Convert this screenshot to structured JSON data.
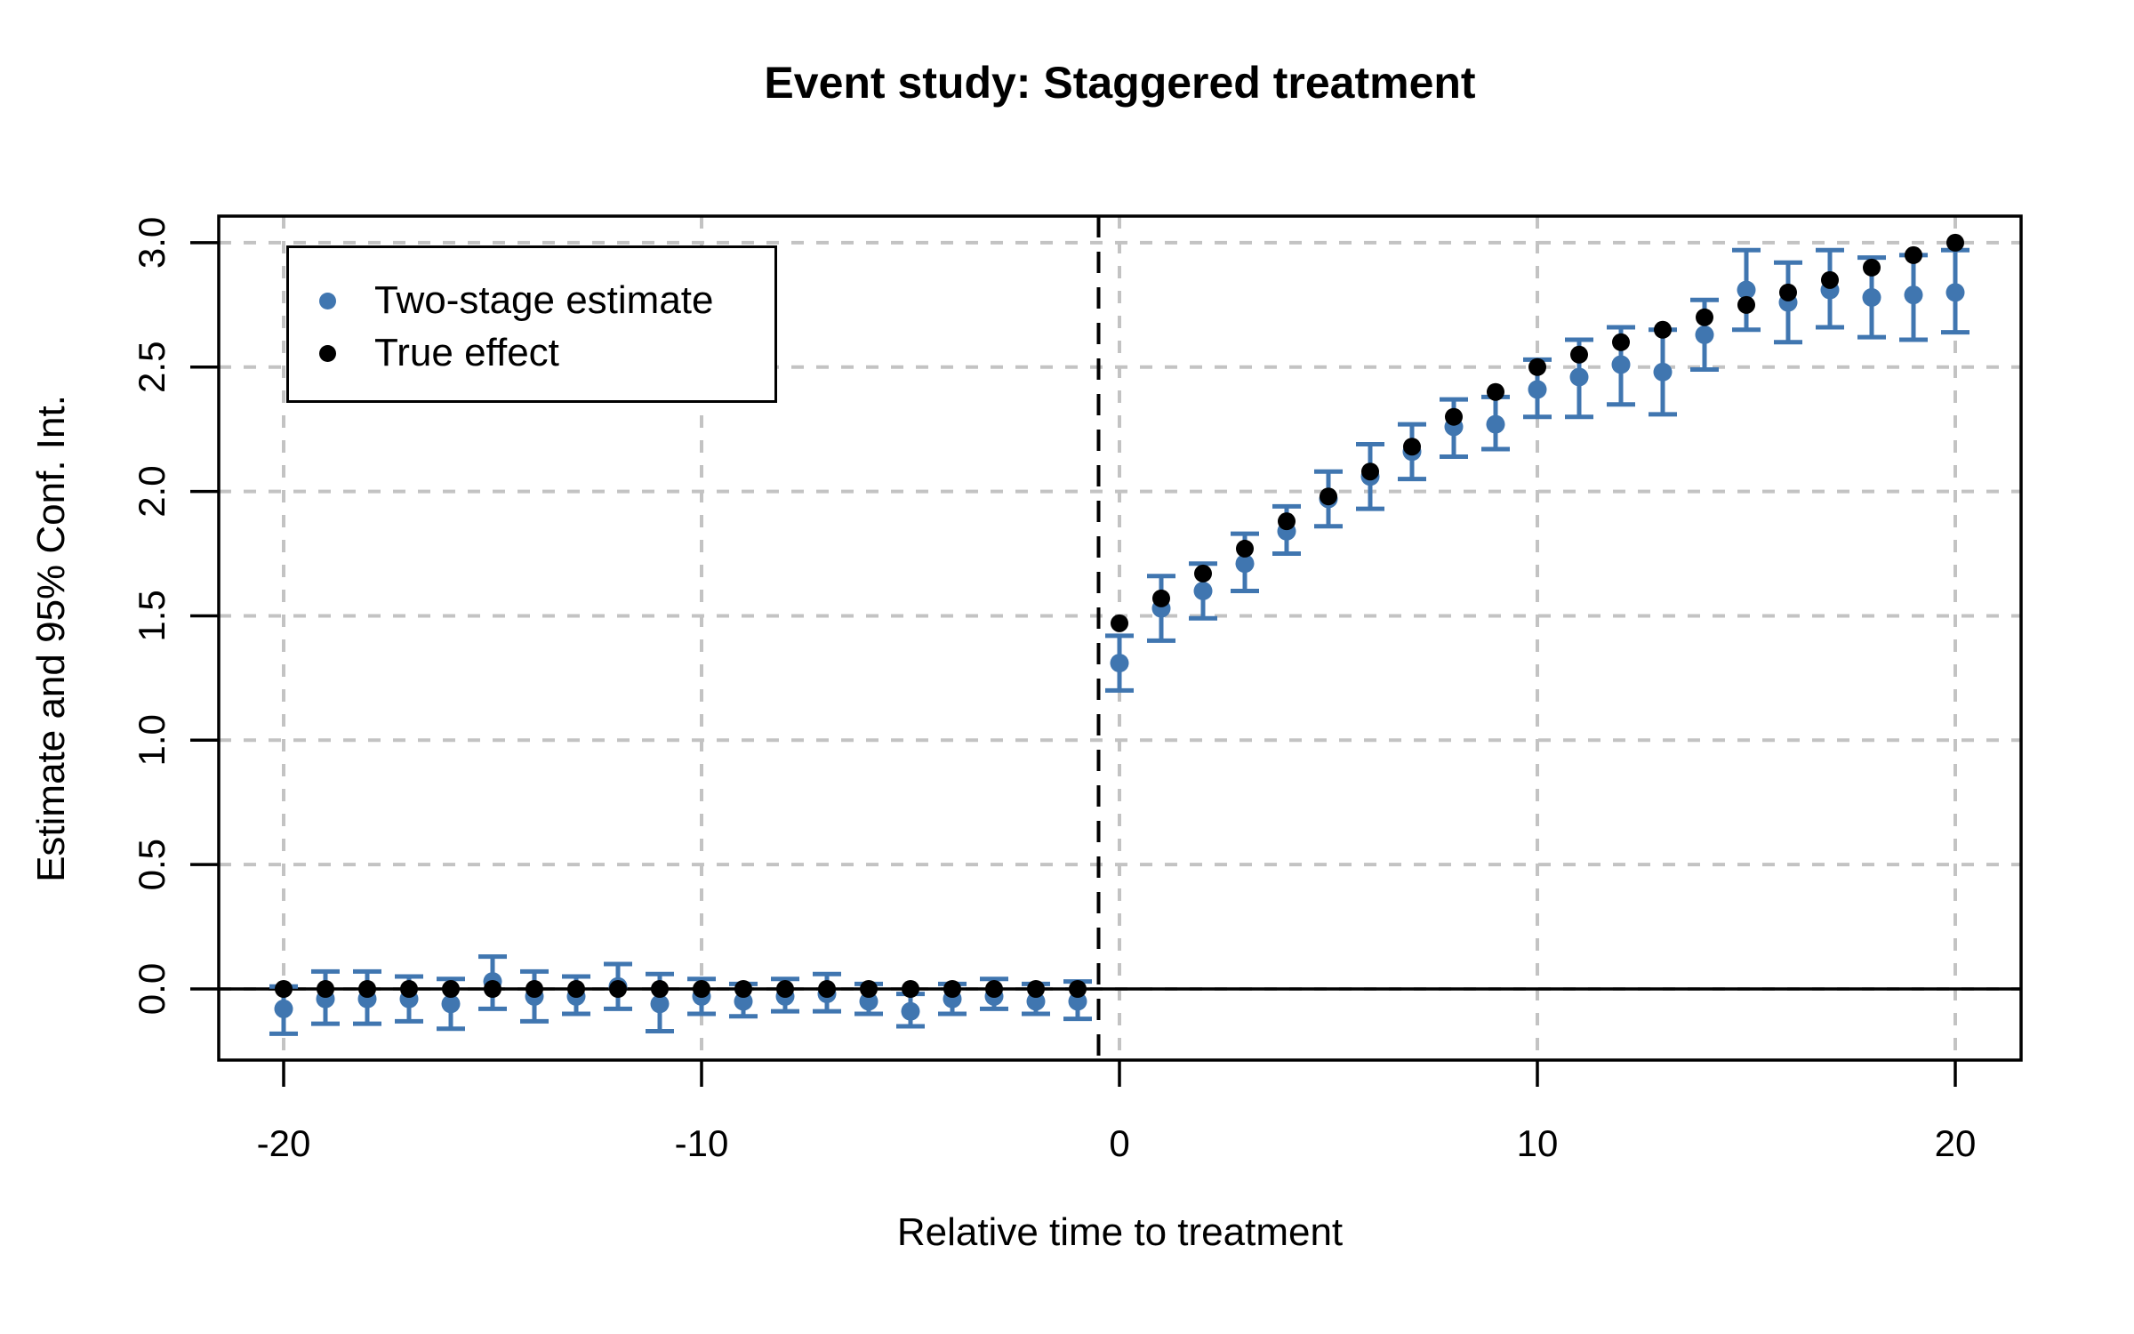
{
  "title": "Event study: Staggered treatment",
  "axes": {
    "xlabel": "Relative time to treatment",
    "ylabel": "Estimate and 95% Conf. Int.",
    "x_ticks": [
      -20,
      -10,
      0,
      10,
      20
    ],
    "x_tick_labels": [
      "-20",
      "-10",
      "0",
      "10",
      "20"
    ],
    "y_ticks": [
      0,
      0.5,
      1.0,
      1.5,
      2.0,
      2.5,
      3.0
    ],
    "y_tick_labels": [
      "0.0",
      "0.5",
      "1.0",
      "1.5",
      "2.0",
      "2.5",
      "3.0"
    ]
  },
  "legend": {
    "items": [
      {
        "label": "Two-stage estimate",
        "color": "#4076B0"
      },
      {
        "label": "True effect",
        "color": "#000000"
      }
    ]
  },
  "colors": {
    "estimate_blue": "#4076B0",
    "true_black": "#000000",
    "grid_gray": "#C3C3C3",
    "background": "#FFFFFF"
  },
  "chart_data": {
    "type": "scatter",
    "title": "Event study: Staggered treatment",
    "xlabel": "Relative time to treatment",
    "ylabel": "Estimate and 95% Conf. Int.",
    "xlim": [
      -21.6,
      21.6
    ],
    "ylim": [
      -0.31,
      3.11
    ],
    "grid": true,
    "legend_position": "top-left",
    "reference_lines": {
      "horizontal_solid_y": 0,
      "vertical_dashed_x": -0.5
    },
    "x": [
      -20,
      -19,
      -18,
      -17,
      -16,
      -15,
      -14,
      -13,
      -12,
      -11,
      -10,
      -9,
      -8,
      -7,
      -6,
      -5,
      -4,
      -3,
      -2,
      -1,
      0,
      1,
      2,
      3,
      4,
      5,
      6,
      7,
      8,
      9,
      10,
      11,
      12,
      13,
      14,
      15,
      16,
      17,
      18,
      19,
      20
    ],
    "series": [
      {
        "name": "Two-stage estimate",
        "color": "#4076B0",
        "marker": "circle",
        "has_error_bars": true,
        "values": [
          -0.08,
          -0.04,
          -0.04,
          -0.04,
          -0.06,
          0.03,
          -0.03,
          -0.03,
          0.01,
          -0.06,
          -0.03,
          -0.05,
          -0.03,
          -0.02,
          -0.05,
          -0.09,
          -0.04,
          -0.03,
          -0.05,
          -0.05,
          1.31,
          1.53,
          1.6,
          1.71,
          1.84,
          1.97,
          2.06,
          2.16,
          2.26,
          2.27,
          2.41,
          2.46,
          2.51,
          2.48,
          2.63,
          2.81,
          2.76,
          2.81,
          2.78,
          2.79,
          2.8
        ],
        "ci_low": [
          -0.18,
          -0.14,
          -0.14,
          -0.13,
          -0.16,
          -0.08,
          -0.13,
          -0.1,
          -0.08,
          -0.17,
          -0.1,
          -0.11,
          -0.09,
          -0.09,
          -0.1,
          -0.15,
          -0.1,
          -0.08,
          -0.1,
          -0.12,
          1.2,
          1.4,
          1.49,
          1.6,
          1.75,
          1.86,
          1.93,
          2.05,
          2.14,
          2.17,
          2.3,
          2.3,
          2.35,
          2.31,
          2.49,
          2.65,
          2.6,
          2.66,
          2.62,
          2.61,
          2.64
        ],
        "ci_high": [
          0.01,
          0.07,
          0.07,
          0.05,
          0.04,
          0.13,
          0.07,
          0.05,
          0.1,
          0.06,
          0.04,
          0.02,
          0.04,
          0.06,
          0.02,
          -0.02,
          0.02,
          0.04,
          0.02,
          0.03,
          1.42,
          1.66,
          1.71,
          1.83,
          1.94,
          2.08,
          2.19,
          2.27,
          2.37,
          2.38,
          2.53,
          2.61,
          2.66,
          2.65,
          2.77,
          2.97,
          2.92,
          2.97,
          2.94,
          2.95,
          2.97
        ]
      },
      {
        "name": "True effect",
        "color": "#000000",
        "marker": "circle",
        "has_error_bars": false,
        "values": [
          0,
          0,
          0,
          0,
          0,
          0,
          0,
          0,
          0,
          0,
          0,
          0,
          0,
          0,
          0,
          0,
          0,
          0,
          0,
          0,
          1.47,
          1.57,
          1.67,
          1.77,
          1.88,
          1.98,
          2.08,
          2.18,
          2.3,
          2.4,
          2.5,
          2.55,
          2.6,
          2.65,
          2.7,
          2.75,
          2.8,
          2.85,
          2.9,
          2.95,
          3.0
        ]
      }
    ]
  }
}
